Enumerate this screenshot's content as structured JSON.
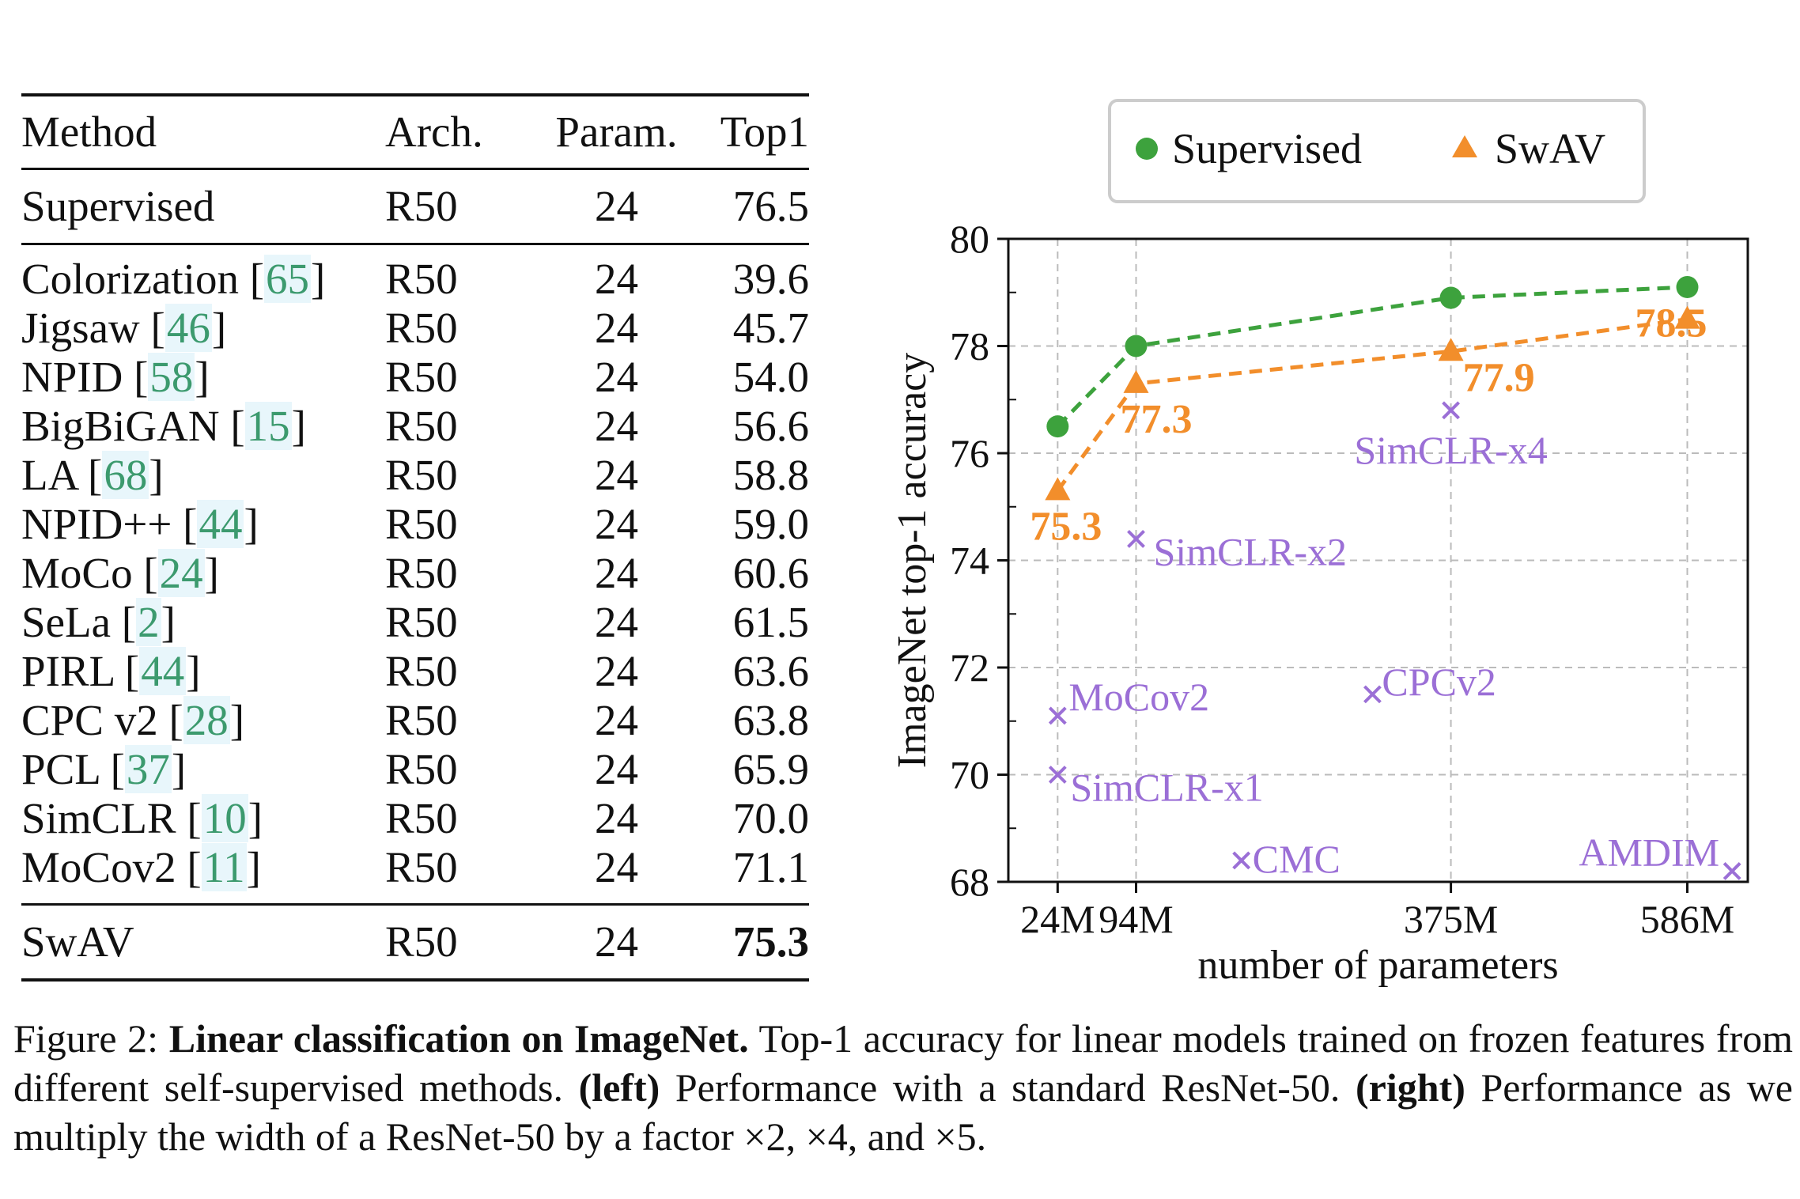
{
  "table": {
    "headers": [
      "Method",
      "Arch.",
      "Param.",
      "Top1"
    ],
    "supervised": {
      "method": "Supervised",
      "arch": "R50",
      "param": "24",
      "top1": "76.5"
    },
    "rows": [
      {
        "method": "Colorization",
        "cite": "65",
        "arch": "R50",
        "param": "24",
        "top1": "39.6"
      },
      {
        "method": "Jigsaw",
        "cite": "46",
        "arch": "R50",
        "param": "24",
        "top1": "45.7"
      },
      {
        "method": "NPID",
        "cite": "58",
        "arch": "R50",
        "param": "24",
        "top1": "54.0"
      },
      {
        "method": "BigBiGAN",
        "cite": "15",
        "arch": "R50",
        "param": "24",
        "top1": "56.6"
      },
      {
        "method": "LA",
        "cite": "68",
        "arch": "R50",
        "param": "24",
        "top1": "58.8"
      },
      {
        "method": "NPID++",
        "cite": "44",
        "arch": "R50",
        "param": "24",
        "top1": "59.0"
      },
      {
        "method": "MoCo",
        "cite": "24",
        "arch": "R50",
        "param": "24",
        "top1": "60.6"
      },
      {
        "method": "SeLa",
        "cite": "2",
        "arch": "R50",
        "param": "24",
        "top1": "61.5"
      },
      {
        "method": "PIRL",
        "cite": "44",
        "arch": "R50",
        "param": "24",
        "top1": "63.6"
      },
      {
        "method": "CPC v2",
        "cite": "28",
        "arch": "R50",
        "param": "24",
        "top1": "63.8"
      },
      {
        "method": "PCL",
        "cite": "37",
        "arch": "R50",
        "param": "24",
        "top1": "65.9"
      },
      {
        "method": "SimCLR",
        "cite": "10",
        "arch": "R50",
        "param": "24",
        "top1": "70.0"
      },
      {
        "method": "MoCov2",
        "cite": "11",
        "arch": "R50",
        "param": "24",
        "top1": "71.1"
      }
    ],
    "swav": {
      "method": "SwAV",
      "arch": "R50",
      "param": "24",
      "top1": "75.3"
    }
  },
  "chart_data": {
    "type": "line",
    "xlabel": "number of parameters",
    "ylabel": "ImageNet top-1 accuracy",
    "x_categories": [
      "24M",
      "94M",
      "375M",
      "586M"
    ],
    "ylim": [
      68,
      80
    ],
    "yticks": [
      68,
      70,
      72,
      74,
      76,
      78,
      80
    ],
    "grid": true,
    "legend_position": "top",
    "series": [
      {
        "name": "Supervised",
        "color": "#3da23d",
        "marker": "circle",
        "x": [
          24,
          94,
          375,
          586
        ],
        "y": [
          76.5,
          78.0,
          78.9,
          79.1
        ],
        "labels": []
      },
      {
        "name": "SwAV",
        "color": "#f28e2b",
        "marker": "triangle",
        "x": [
          24,
          94,
          375,
          586
        ],
        "y": [
          75.3,
          77.3,
          77.9,
          78.5
        ],
        "labels": [
          "75.3",
          "77.3",
          "77.9",
          "78.5"
        ]
      }
    ],
    "points": [
      {
        "label": "MoCov2",
        "x": 24,
        "y": 71.1
      },
      {
        "label": "SimCLR-x1",
        "x": 24,
        "y": 70.0
      },
      {
        "label": "SimCLR-x2",
        "x": 94,
        "y": 74.4
      },
      {
        "label": "SimCLR-x4",
        "x": 375,
        "y": 76.8
      },
      {
        "label": "CPCv2",
        "x": 305,
        "y": 71.5
      },
      {
        "label": "CMC",
        "x": 188,
        "y": 68.4
      },
      {
        "label": "AMDIM",
        "x": 626,
        "y": 68.2
      }
    ],
    "point_color": "#9b6fd6"
  },
  "caption": {
    "prefix": "Figure 2: ",
    "bold_title": "Linear classification on ImageNet.",
    "text1": " Top-1 accuracy for linear models trained on frozen features from different self-supervised methods. ",
    "left_label": "(left)",
    "text2": " Performance with a standard ResNet-50. ",
    "right_label": "(right)",
    "text3": " Performance as we multiply the width of a ResNet-50 by a factor ×2, ×4, and ×5."
  }
}
